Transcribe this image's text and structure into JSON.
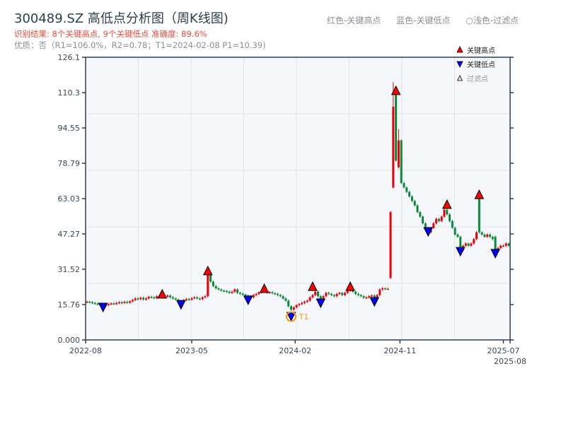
{
  "header": {
    "title": "300489.SZ 高低点分析图（周K线图)",
    "result_line": "识别结果: 8个关键高点, 9个关键低点   准确度: 89.6%",
    "quality_line": "优质：否（R1=106.0%，R2=0.78；T1=2024-02-08 P1=10.39)"
  },
  "top_legend": [
    "红色-关键高点",
    "蓝色-关键低点",
    "○浅色-过滤点"
  ],
  "colors": {
    "up": "#e8000b",
    "down": "#0a8a38",
    "high_marker": "#ff0000",
    "low_marker": "#0000ff",
    "t1": "#f39c12",
    "plot_bg": "#f5f7fa",
    "axis": "#2f3e4e"
  },
  "chart_data": {
    "type": "candlestick",
    "title": "300489.SZ 高低点分析图（周K线图)",
    "xlabel": "",
    "ylabel": "",
    "ylim": [
      0,
      126.1
    ],
    "yticks": [
      "0.000",
      "15.76",
      "31.52",
      "47.27",
      "63.03",
      "78.79",
      "94.55",
      "110.3",
      "126.1"
    ],
    "ytick_values": [
      0,
      15.76,
      31.52,
      47.27,
      63.03,
      78.79,
      94.55,
      110.3,
      126.1
    ],
    "xlim_weeks": [
      0,
      158
    ],
    "xticks": [
      {
        "label": "2022-08",
        "week": 0
      },
      {
        "label": "2023-05",
        "week": 39.5
      },
      {
        "label": "2024-02",
        "week": 78
      },
      {
        "label": "2024-11",
        "week": 117
      },
      {
        "label": "2025-07",
        "week": 155.5
      },
      {
        "label": "2025-08",
        "week": 158
      }
    ],
    "grid": true,
    "close": [
      17,
      16.8,
      16.5,
      16.2,
      15.8,
      15.5,
      15.2,
      15.5,
      16,
      16.3,
      16.0,
      16.5,
      16.8,
      16.5,
      17,
      16.6,
      17.2,
      17.8,
      18.5,
      18.2,
      18.8,
      18.0,
      18.5,
      19.2,
      19.0,
      18.6,
      19.5,
      19.0,
      20.0,
      19.2,
      19.8,
      19.0,
      18.5,
      18.0,
      17.5,
      17.2,
      17.8,
      18.2,
      18.0,
      18.6,
      19.0,
      18.5,
      18.2,
      19.0,
      19.5,
      30.0,
      26.0,
      24.0,
      23.0,
      22.5,
      22.0,
      21.8,
      21.5,
      21.0,
      21.5,
      22.5,
      21.0,
      20.6,
      20.2,
      19.8,
      19.5,
      19.0,
      20.0,
      20.5,
      21.2,
      22.0,
      21.5,
      21.0,
      21.3,
      20.8,
      20.5,
      20.0,
      19.5,
      18.5,
      17.5,
      15.0,
      13.5,
      14.5,
      15.5,
      16.0,
      16.5,
      17.0,
      17.5,
      19.0,
      20.0,
      21.5,
      19.5,
      18.5,
      19.5,
      21.0,
      20.5,
      20.0,
      19.5,
      20.5,
      21.0,
      20.0,
      21.0,
      22.0,
      22.5,
      21.5,
      20.5,
      20.0,
      19.5,
      18.8,
      19.0,
      19.5,
      19.8,
      19.0,
      20.0,
      22.5,
      23.0,
      22.8,
      22.8,
      57,
      104,
      80,
      89,
      70,
      68,
      66,
      64,
      62,
      60,
      57,
      55,
      52,
      50,
      48,
      50,
      52,
      54,
      53,
      55,
      58,
      56,
      53,
      50,
      47,
      46,
      40,
      42,
      43,
      42,
      43,
      45,
      48,
      48,
      47,
      46,
      47,
      46,
      45,
      40,
      41,
      42,
      42,
      43,
      42
    ],
    "open_overrides": {
      "45": 19.5,
      "113": 27.7,
      "114": 68,
      "115": 110,
      "116": 77,
      "146": 64,
      "152": 46
    },
    "high_overrides": {
      "114": 115,
      "116": 94,
      "146": 64.5
    },
    "key_highs": [
      {
        "week": 28,
        "price": 20.2
      },
      {
        "week": 45,
        "price": 30.6
      },
      {
        "week": 66,
        "price": 22.7
      },
      {
        "week": 84,
        "price": 23.6
      },
      {
        "week": 98,
        "price": 23.6
      },
      {
        "week": 115,
        "price": 111
      },
      {
        "week": 134,
        "price": 60.2
      },
      {
        "week": 146,
        "price": 64.6
      }
    ],
    "key_lows": [
      {
        "week": 6,
        "price": 14.8
      },
      {
        "week": 35,
        "price": 16
      },
      {
        "week": 60,
        "price": 18
      },
      {
        "week": 76,
        "price": 10.7
      },
      {
        "week": 87,
        "price": 16.7
      },
      {
        "week": 107,
        "price": 17.3
      },
      {
        "week": 127,
        "price": 48.5
      },
      {
        "week": 139,
        "price": 39.7
      },
      {
        "week": 152,
        "price": 38.8
      }
    ],
    "t1": {
      "label": "T1",
      "week": 76,
      "price": 10.39
    },
    "legend": [
      "关键高点",
      "关键低点",
      "过滤点"
    ],
    "legend_placement": "top-right"
  }
}
